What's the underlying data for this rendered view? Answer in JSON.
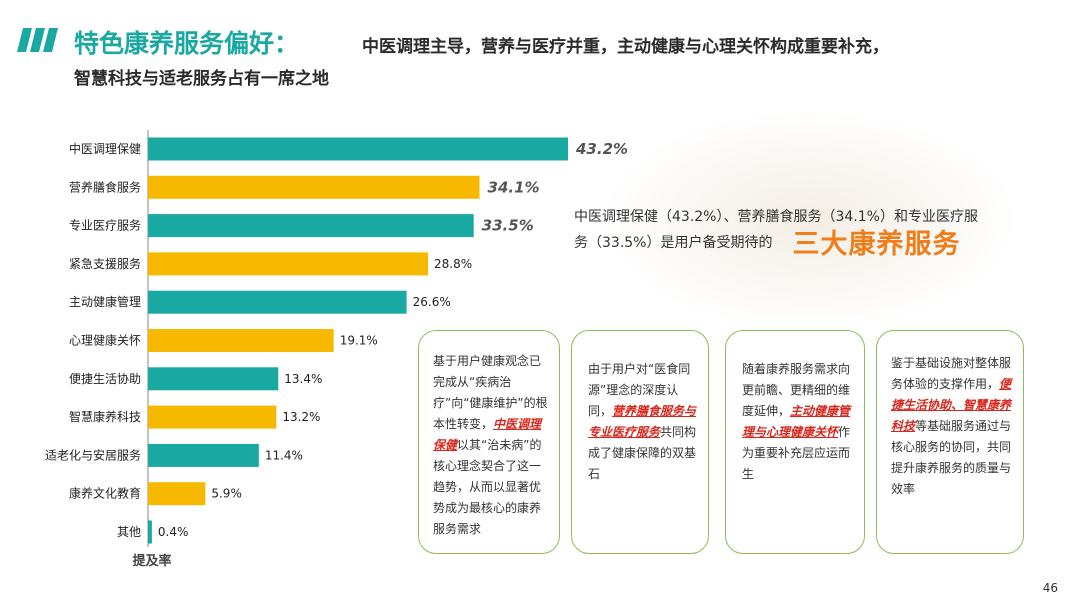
{
  "title": {
    "main": "特色康养服务偏好：",
    "sub": "中医调理主导，营养与医疗并重，主动健康与心理关怀构成重要补充，",
    "sub2": "智慧科技与适老服务占有一席之地"
  },
  "chart_data": {
    "type": "bar",
    "orientation": "horizontal",
    "xlabel": "提及率",
    "categories": [
      "中医调理保健",
      "营养膳食服务",
      "专业医疗服务",
      "紧急支援服务",
      "主动健康管理",
      "心理健康关怀",
      "便捷生活协助",
      "智慧康养科技",
      "适老化与安居服务",
      "康养文化教育",
      "其他"
    ],
    "values": [
      43.2,
      34.1,
      33.5,
      28.8,
      26.6,
      19.1,
      13.4,
      13.2,
      11.4,
      5.9,
      0.4
    ],
    "value_labels": [
      "43.2%",
      "34.1%",
      "33.5%",
      "28.8%",
      "26.6%",
      "19.1%",
      "13.4%",
      "13.2%",
      "11.4%",
      "5.9%",
      "0.4%"
    ],
    "bar_colors": [
      "#1aa8a3",
      "#f7b800",
      "#1aa8a3",
      "#f7b800",
      "#1aa8a3",
      "#f7b800",
      "#1aa8a3",
      "#f7b800",
      "#1aa8a3",
      "#f7b800",
      "#1aa8a3"
    ],
    "emphasized_top": 3,
    "unit": "%"
  },
  "summary": {
    "line1": "中医调理保健（43.2%）、营养膳食服务（34.1%）和专业医疗服",
    "line2": "务（33.5%）是用户备受期待的",
    "highlight": "三大康养服务"
  },
  "cards": [
    {
      "p1": "基于用户健康观念已完成从“疾病治疗”向“健康维护”的根本性转变，",
      "em": "中医调理保健",
      "p2": "以其“治未病”的核心理念契合了这一趋势，从而以显著优势成为最核心的康养服务需求"
    },
    {
      "p1": "由于用户对“医食同源”理念的深度认同，",
      "em": "营养膳食服务与专业医疗服务",
      "p2": "共同构成了健康保障的双基石"
    },
    {
      "p1": "随着康养服务需求向更前瞻、更精细的维度延伸，",
      "em": "主动健康管理与心理健康关怀",
      "p2": "作为重要补充层应运而生"
    },
    {
      "p1": "鉴于基础设施对整体服务体验的支撑作用，",
      "em": "便捷生活协助、智慧康养科技",
      "p2": "等基础服务通过与核心服务的协同，共同提升康养服务的质量与效率"
    }
  ],
  "colors": {
    "teal": "#1aa8a3",
    "gold": "#f7b800",
    "orange": "#ef7d1a",
    "red": "#d9261c",
    "card_border": "#8bbf5a"
  },
  "page_number": "46"
}
